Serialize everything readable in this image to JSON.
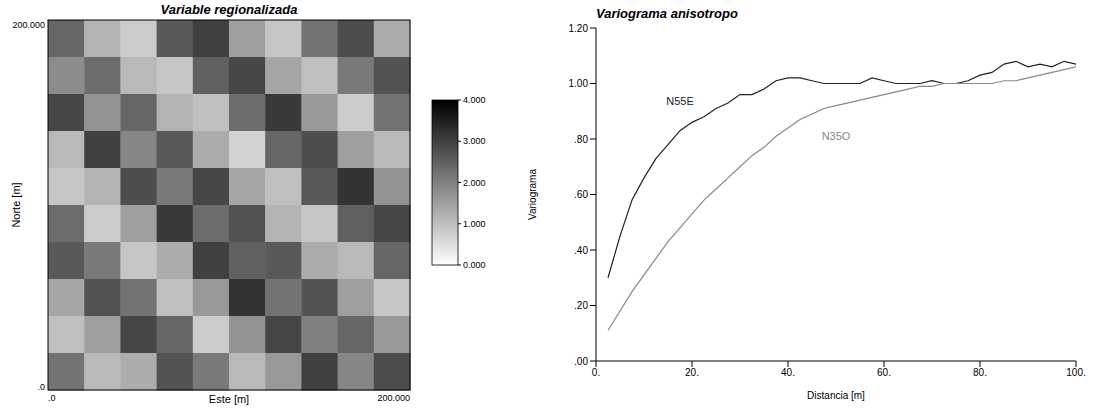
{
  "chart_data": [
    {
      "type": "heatmap",
      "title": "Variable regionalizada",
      "x_label": "Este [m]",
      "y_label": "Norte [m]",
      "xlim": [
        0,
        200
      ],
      "ylim": [
        0,
        200
      ],
      "xticks": [
        {
          "value": 0,
          "label": ".0"
        },
        {
          "value": 200,
          "label": "200.000"
        }
      ],
      "yticks": [
        {
          "value": 0,
          "label": ".0"
        },
        {
          "value": 200,
          "label": "200.000"
        }
      ],
      "cells": [
        [
          2.4,
          1.2,
          0.8,
          2.6,
          3.0,
          1.5,
          0.9,
          2.2,
          2.8,
          1.3
        ],
        [
          1.8,
          2.3,
          1.1,
          0.9,
          2.5,
          2.9,
          1.4,
          1.0,
          2.1,
          2.7
        ],
        [
          2.9,
          1.7,
          2.4,
          1.2,
          1.0,
          2.3,
          3.1,
          1.6,
          0.8,
          2.2
        ],
        [
          1.1,
          3.0,
          1.9,
          2.6,
          1.3,
          0.7,
          2.4,
          2.8,
          1.5,
          1.1
        ],
        [
          0.9,
          1.2,
          2.8,
          2.1,
          2.9,
          1.4,
          1.0,
          2.6,
          3.2,
          1.7
        ],
        [
          2.3,
          0.8,
          1.5,
          3.1,
          2.3,
          2.7,
          1.2,
          0.9,
          2.5,
          2.9
        ],
        [
          2.6,
          2.1,
          0.9,
          1.3,
          3.0,
          2.5,
          2.6,
          1.3,
          1.1,
          2.4
        ],
        [
          1.4,
          2.7,
          2.2,
          1.0,
          1.6,
          3.2,
          2.2,
          2.7,
          1.5,
          0.9
        ],
        [
          1.0,
          1.5,
          2.9,
          2.4,
          0.8,
          1.7,
          2.9,
          2.0,
          2.4,
          1.6
        ],
        [
          2.2,
          1.1,
          1.3,
          2.7,
          2.1,
          1.1,
          1.6,
          3.0,
          1.9,
          2.8
        ]
      ],
      "colorbar_range": [
        0,
        4
      ],
      "colorbar_ticks": [
        {
          "value": 0,
          "label": "0.000"
        },
        {
          "value": 1,
          "label": "1.000"
        },
        {
          "value": 2,
          "label": "2.000"
        },
        {
          "value": 3,
          "label": "3.000"
        },
        {
          "value": 4,
          "label": "4.000"
        }
      ],
      "colors": [
        "#ffffff",
        "#000000"
      ]
    },
    {
      "type": "line",
      "title": "Variograma anisotropo",
      "x_label": "Distancia [m]",
      "y_label": "Variograma",
      "x": [
        2.5,
        5,
        7.5,
        10,
        12.5,
        15,
        17.5,
        20,
        22.5,
        25,
        27.5,
        30,
        32.5,
        35,
        37.5,
        40,
        42.5,
        45,
        47.5,
        50,
        52.5,
        55,
        57.5,
        60,
        62.5,
        65,
        67.5,
        70,
        72.5,
        75,
        77.5,
        80,
        82.5,
        85,
        87.5,
        90,
        92.5,
        95,
        97.5,
        100
      ],
      "series": [
        {
          "name": "N55E",
          "color": "#222222",
          "values": [
            0.3,
            0.45,
            0.58,
            0.66,
            0.73,
            0.78,
            0.83,
            0.86,
            0.88,
            0.91,
            0.93,
            0.96,
            0.96,
            0.98,
            1.01,
            1.02,
            1.02,
            1.01,
            1.0,
            1.0,
            1.0,
            1.0,
            1.02,
            1.01,
            1.0,
            1.0,
            1.0,
            1.01,
            1.0,
            1.0,
            1.01,
            1.03,
            1.04,
            1.07,
            1.08,
            1.06,
            1.07,
            1.06,
            1.08,
            1.07
          ]
        },
        {
          "name": "N35O",
          "color": "#888888",
          "values": [
            0.11,
            0.18,
            0.25,
            0.31,
            0.37,
            0.43,
            0.48,
            0.53,
            0.58,
            0.62,
            0.66,
            0.7,
            0.74,
            0.77,
            0.81,
            0.84,
            0.87,
            0.89,
            0.91,
            0.92,
            0.93,
            0.94,
            0.95,
            0.96,
            0.97,
            0.98,
            0.99,
            0.99,
            1.0,
            1.0,
            1.0,
            1.0,
            1.0,
            1.01,
            1.01,
            1.02,
            1.03,
            1.04,
            1.05,
            1.06
          ]
        }
      ],
      "xlim": [
        0,
        100
      ],
      "ylim": [
        0,
        1.2
      ],
      "xticks": [
        {
          "value": 0,
          "label": "0."
        },
        {
          "value": 20,
          "label": "20."
        },
        {
          "value": 40,
          "label": "40."
        },
        {
          "value": 60,
          "label": "60."
        },
        {
          "value": 80,
          "label": "80."
        },
        {
          "value": 100,
          "label": "100."
        }
      ],
      "yticks": [
        {
          "value": 0,
          "label": ".00"
        },
        {
          "value": 0.2,
          "label": ".20"
        },
        {
          "value": 0.4,
          "label": ".40"
        },
        {
          "value": 0.6,
          "label": ".60"
        },
        {
          "value": 0.8,
          "label": ".80"
        },
        {
          "value": 1.0,
          "label": "1.00"
        },
        {
          "value": 1.2,
          "label": "1.20"
        }
      ]
    }
  ]
}
